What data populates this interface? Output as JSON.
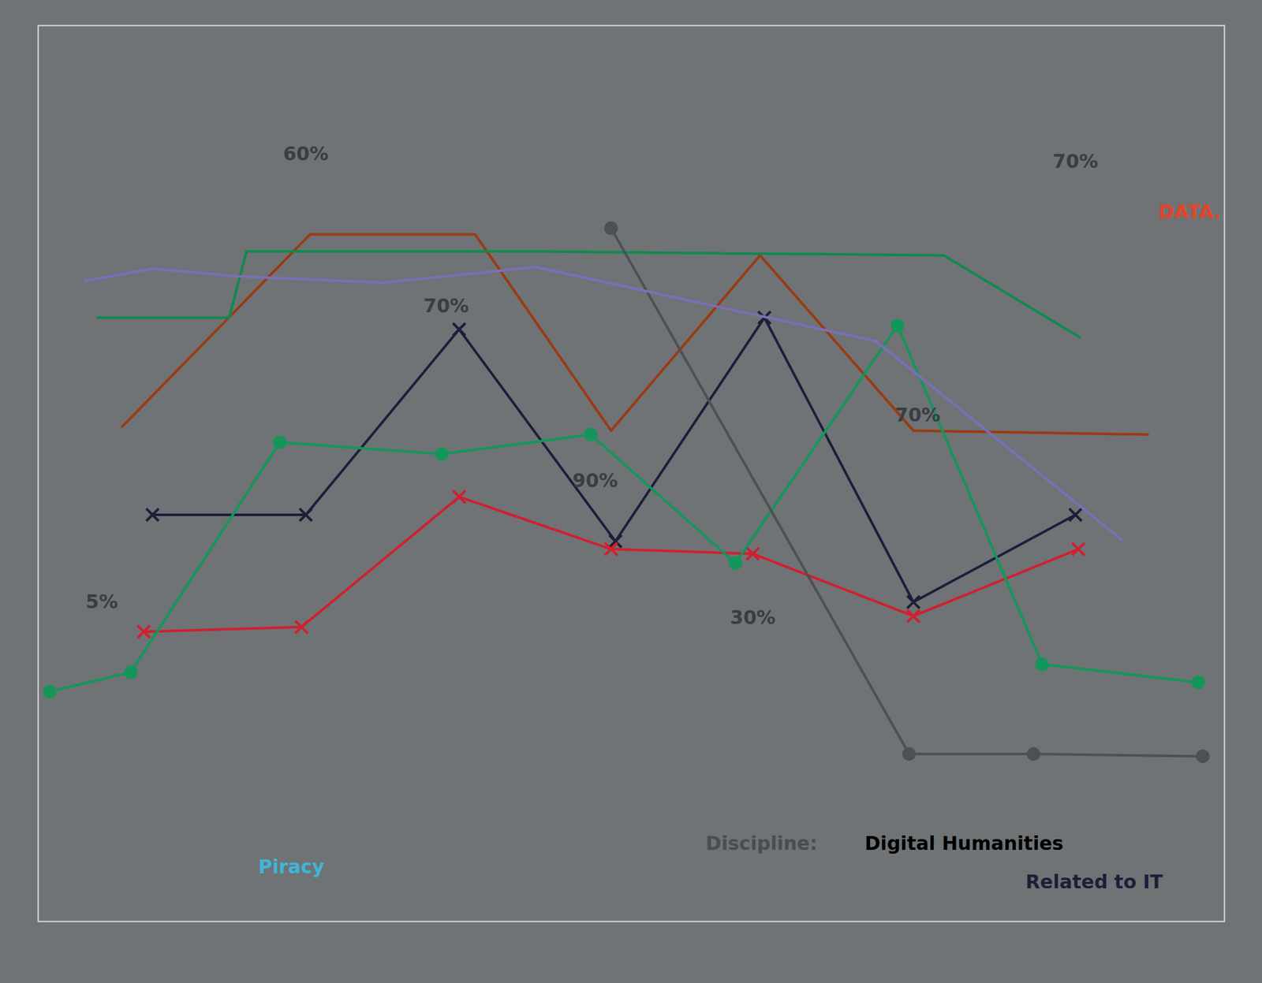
{
  "chart_data": {
    "type": "line",
    "xlim": [
      -0.2,
      8
    ],
    "ylim": [
      -15,
      100
    ],
    "xticks": [],
    "yticks": [],
    "tick_labels": false,
    "grid": false,
    "series": [
      {
        "color": "#1c1f3a",
        "marker": "x",
        "line_style": "solid",
        "x": [
          0.59,
          1.65,
          2.71,
          3.79,
          4.82,
          5.85,
          6.97
        ],
        "values": [
          37.2,
          37.2,
          61,
          33.8,
          62.5,
          26,
          37.2
        ]
      },
      {
        "color": "#d0202e",
        "marker": "x",
        "line_style": "solid",
        "x": [
          0.53,
          1.62,
          2.71,
          3.76,
          4.74,
          5.85,
          6.99
        ],
        "values": [
          22.2,
          22.8,
          39.5,
          32.8,
          32.2,
          24.2,
          32.8
        ]
      },
      {
        "color": "#9a3b12",
        "marker": "none",
        "line_style": "solid",
        "x": [
          0.38,
          1.68,
          2.82,
          3.76,
          4.79,
          5.85,
          7.47
        ],
        "values": [
          48.5,
          73.2,
          73.2,
          48,
          70.5,
          48,
          47.5
        ]
      },
      {
        "color": "#14965a",
        "marker": "circle",
        "line_style": "solid",
        "x": [
          -0.12,
          0.44,
          1.47,
          2.59,
          3.62,
          4.62,
          5.74,
          6.74,
          7.82
        ],
        "values": [
          14.5,
          17,
          46.5,
          45,
          47.5,
          31,
          61.5,
          18,
          15.7
        ]
      },
      {
        "color": "#0f8a4e",
        "marker": "none",
        "line_style": "solid",
        "x": [
          0.21,
          1.12,
          1.24,
          3.24,
          6.06,
          7.0
        ],
        "values": [
          62.5,
          62.5,
          71,
          71,
          70.5,
          60
        ]
      },
      {
        "color": "#4d5054",
        "marker": "circle",
        "line_style": "solid",
        "x": [
          3.76,
          5.82,
          6.68,
          7.85
        ],
        "values": [
          74,
          6.5,
          6.5,
          6.2
        ]
      },
      {
        "color": "#7b6fb8",
        "marker": "none",
        "line_style": "solid",
        "x": [
          0.12,
          0.59,
          1.18,
          2.18,
          3.24,
          5.59,
          7.29
        ],
        "values": [
          67.2,
          68.8,
          67.8,
          67,
          69,
          59.5,
          34
        ]
      }
    ],
    "annotations": [
      {
        "text": "60%",
        "x": 1.65,
        "y": 83.5,
        "color": "#3a3d44"
      },
      {
        "text": "70%",
        "x": 2.62,
        "y": 64,
        "color": "#3a3d44"
      },
      {
        "text": "90%",
        "x": 3.65,
        "y": 41.5,
        "color": "#3a3d44"
      },
      {
        "text": "30%",
        "x": 4.74,
        "y": 24,
        "color": "#3a3d44"
      },
      {
        "text": "70%",
        "x": 5.88,
        "y": 50,
        "color": "#3a3d44"
      },
      {
        "text": "70%",
        "x": 6.97,
        "y": 82.5,
        "color": "#3a3d44"
      },
      {
        "text": "5%",
        "x": 0.24,
        "y": 26,
        "color": "#3a3d44"
      },
      {
        "text": "DATA.",
        "x": 7.76,
        "y": 76,
        "color": "#e0452a"
      },
      {
        "text": "Piracy",
        "x": 1.55,
        "y": -8,
        "color": "#3fb6d8"
      },
      {
        "text": "Discipline:",
        "x": 4.8,
        "y": -5,
        "color": "#4a4d50"
      },
      {
        "text": "Digital Humanities",
        "x": 6.2,
        "y": -5,
        "color": "#000000"
      },
      {
        "text": "Related to IT",
        "x": 7.1,
        "y": -10,
        "color": "#1c1f3a"
      }
    ]
  }
}
